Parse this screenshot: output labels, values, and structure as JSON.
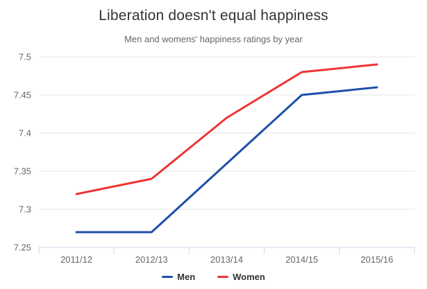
{
  "chart_data": {
    "type": "line",
    "title": "Liberation doesn't equal happiness",
    "subtitle": "Men and womens' happiness ratings by year",
    "categories": [
      "2011/12",
      "2012/13",
      "2013/14",
      "2014/15",
      "2015/16"
    ],
    "series": [
      {
        "name": "Men",
        "color": "#1d4fa8",
        "values": [
          7.27,
          7.27,
          7.36,
          7.45,
          7.46
        ]
      },
      {
        "name": "Women",
        "color": "#ee3333",
        "values": [
          7.32,
          7.34,
          7.42,
          7.48,
          7.49
        ]
      }
    ],
    "xlabel": "",
    "ylabel": "",
    "ylim": [
      7.25,
      7.5
    ],
    "yticks": [
      7.25,
      7.3,
      7.35,
      7.4,
      7.45,
      7.5
    ],
    "ytick_labels": [
      "7.25",
      "7.3",
      "7.35",
      "7.4",
      "7.45",
      "7.5"
    ],
    "grid": "horizontal",
    "legend_position": "bottom"
  },
  "colors": {
    "background": "#ffffff",
    "title_text": "#333333",
    "subtitle_text": "#666666",
    "axis_label_text": "#666666",
    "gridline": "#e6e6e6",
    "axis_line": "#ccd6eb",
    "legend_text": "#333333"
  }
}
